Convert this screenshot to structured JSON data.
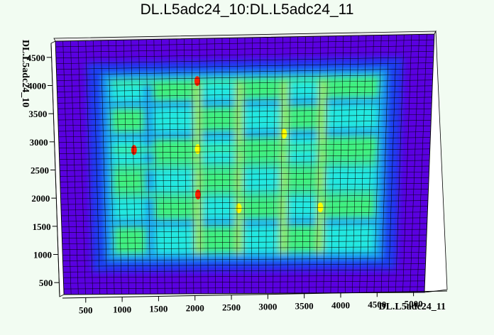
{
  "chart_data": {
    "type": "heatmap",
    "title": "DL.L5adc24_10:DL.L5adc24_11",
    "xlabel": "DL.L5adc24_11",
    "ylabel": "DL.L5adc24_10",
    "xlim": [
      200,
      5150
    ],
    "ylim": [
      250,
      4750
    ],
    "x_ticks": [
      500,
      1000,
      1500,
      2000,
      2500,
      3000,
      3500,
      4000,
      4500,
      5000
    ],
    "y_ticks": [
      500,
      1000,
      1500,
      2000,
      2500,
      3000,
      3500,
      4000,
      4500
    ],
    "grid": true,
    "colorscale": [
      "#5a00e0",
      "#1e3cf0",
      "#1ea0f0",
      "#20e8e0",
      "#40f080",
      "#a0f000",
      "#ffff00",
      "#ff2000"
    ],
    "occupied_x_range": [
      600,
      4750
    ],
    "occupied_y_range": [
      650,
      4350
    ],
    "hot_columns_x": [
      2050,
      2600,
      3200,
      3700
    ],
    "hot_rows_y": [
      2000,
      2500,
      2800,
      4000
    ],
    "peak_points": [
      {
        "x": 2050,
        "y": 4000,
        "level": "high"
      },
      {
        "x": 2050,
        "y": 2000,
        "level": "high"
      },
      {
        "x": 1200,
        "y": 2800,
        "level": "high"
      },
      {
        "x": 2050,
        "y": 2800,
        "level": "medium"
      },
      {
        "x": 2600,
        "y": 1750,
        "level": "medium"
      },
      {
        "x": 3200,
        "y": 3050,
        "level": "medium"
      },
      {
        "x": 3700,
        "y": 1750,
        "level": "medium"
      }
    ]
  }
}
